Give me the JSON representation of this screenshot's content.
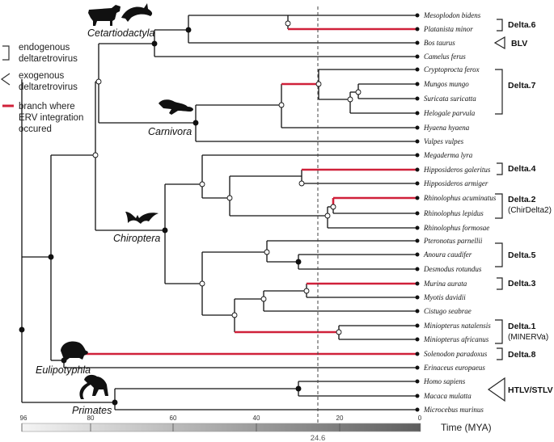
{
  "legend": {
    "endogenous_line1": "endogenous",
    "endogenous_line2": "deltaretrovirus",
    "exogenous_line1": "exogenous",
    "exogenous_line2": "deltaretrovirus",
    "branch_line1": "branch where",
    "branch_line2": "ERV integration",
    "branch_line3": "occured"
  },
  "clades": {
    "cetartiodactyla": "Cetartiodactyla",
    "carnivora": "Carnivora",
    "chiroptera": "Chiroptera",
    "eulipotyphla": "Eulipotyphla",
    "primates": "Primates"
  },
  "taxa": [
    "Mesoplodon bidens",
    "Platanista minor",
    "Bos taurus",
    "Camelus ferus",
    "Cryptoprocta ferox",
    "Mungos mungo",
    "Suricata suricatta",
    "Helogale parvula",
    "Hyaena hyaena",
    "Vulpes vulpes",
    "Megaderma lyra",
    "Hipposideros galeritus",
    "Hipposideros armiger",
    "Rhinolophus acuminatus",
    "Rhinolophus lepidus",
    "Rhinolophus formosae",
    "Pteronotus parnellii",
    "Anoura caudifer",
    "Desmodus rotundus",
    "Murina aurata",
    "Myotis davidii",
    "Cistugo seabrae",
    "Miniopterus natalensis",
    "Miniopterus africanus",
    "Solenodon paradoxus",
    "Erinaceus europaeus",
    "Homo sapiens",
    "Macaca mulatta",
    "Microcebus murinus"
  ],
  "groups": {
    "delta6": "Delta.6",
    "blv": "BLV",
    "delta7": "Delta.7",
    "delta4": "Delta.4",
    "delta2": "Delta.2",
    "delta2_sub": "(ChirDelta2)",
    "delta5": "Delta.5",
    "delta3": "Delta.3",
    "delta1": "Delta.1",
    "delta1_sub": "(MINERVa)",
    "delta8": "Delta.8",
    "htlv": "HTLV/STLV"
  },
  "axis": {
    "ticks": [
      "96",
      "80",
      "60",
      "40",
      "20",
      "0"
    ],
    "marker": "24.6",
    "label": "Time (MYA)"
  },
  "colors": {
    "integration_branch": "#d0213a",
    "tree": "#111111"
  }
}
